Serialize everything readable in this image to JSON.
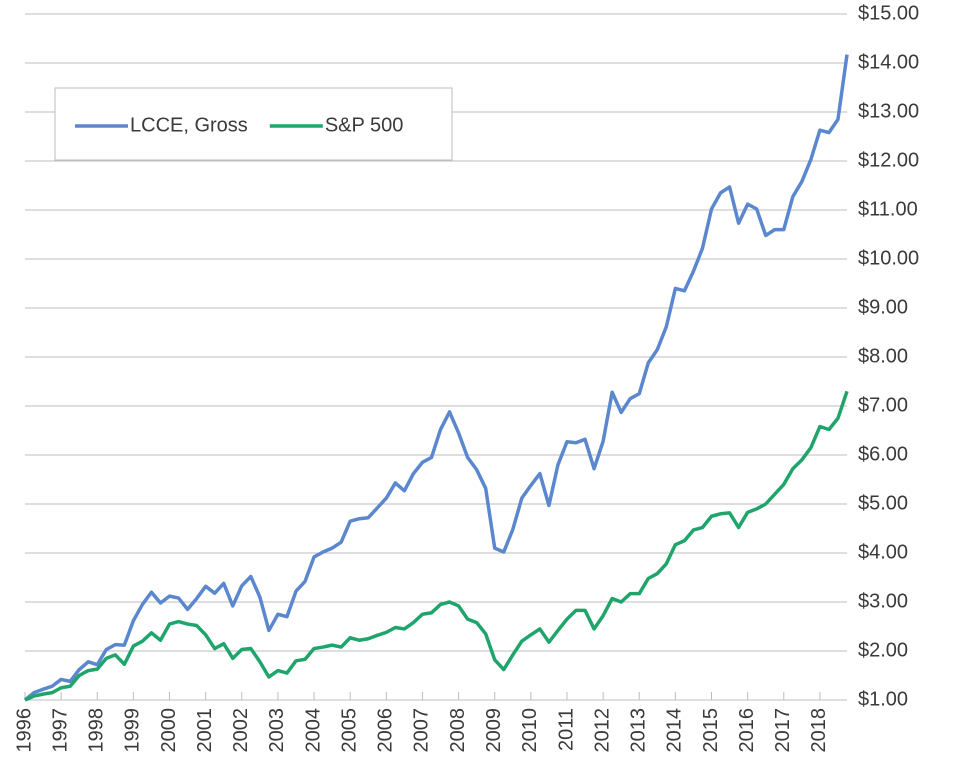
{
  "chart_data": {
    "type": "line",
    "x": [
      1996,
      1996.25,
      1996.5,
      1996.75,
      1997,
      1997.25,
      1997.5,
      1997.75,
      1998,
      1998.25,
      1998.5,
      1998.75,
      1999,
      1999.25,
      1999.5,
      1999.75,
      2000,
      2000.25,
      2000.5,
      2000.75,
      2001,
      2001.25,
      2001.5,
      2001.75,
      2002,
      2002.25,
      2002.5,
      2002.75,
      2003,
      2003.25,
      2003.5,
      2003.75,
      2004,
      2004.25,
      2004.5,
      2004.75,
      2005,
      2005.25,
      2005.5,
      2005.75,
      2006,
      2006.25,
      2006.5,
      2006.75,
      2007,
      2007.25,
      2007.5,
      2007.75,
      2008,
      2008.25,
      2008.5,
      2008.75,
      2009,
      2009.25,
      2009.5,
      2009.75,
      2010,
      2010.25,
      2010.5,
      2010.75,
      2011,
      2011.25,
      2011.5,
      2011.75,
      2012,
      2012.25,
      2012.5,
      2012.75,
      2013,
      2013.25,
      2013.5,
      2013.75,
      2014,
      2014.25,
      2014.5,
      2014.75,
      2015,
      2015.25,
      2015.5,
      2015.75,
      2016,
      2016.25,
      2016.5,
      2016.75,
      2017,
      2017.25,
      2017.5,
      2017.75,
      2018,
      2018.25,
      2018.5,
      2018.75
    ],
    "series": [
      {
        "name": "LCCE, Gross",
        "color": "#5b87cf",
        "values": [
          1.0,
          1.15,
          1.22,
          1.28,
          1.42,
          1.38,
          1.62,
          1.78,
          1.72,
          2.03,
          2.13,
          2.12,
          2.62,
          2.95,
          3.2,
          2.98,
          3.12,
          3.08,
          2.85,
          3.07,
          3.32,
          3.18,
          3.38,
          2.92,
          3.33,
          3.52,
          3.1,
          2.42,
          2.75,
          2.7,
          3.22,
          3.42,
          3.92,
          4.02,
          4.1,
          4.22,
          4.65,
          4.7,
          4.72,
          4.92,
          5.12,
          5.43,
          5.27,
          5.62,
          5.85,
          5.95,
          6.52,
          6.88,
          6.45,
          5.95,
          5.7,
          5.32,
          4.1,
          4.02,
          4.48,
          5.12,
          5.38,
          5.62,
          4.97,
          5.8,
          6.27,
          6.25,
          6.32,
          5.72,
          6.28,
          7.28,
          6.87,
          7.15,
          7.25,
          7.88,
          8.15,
          8.62,
          9.4,
          9.35,
          9.75,
          10.22,
          11.02,
          11.35,
          11.47,
          10.73,
          11.12,
          11.02,
          10.48,
          10.6,
          10.6,
          11.27,
          11.58,
          12.03,
          12.63,
          12.58,
          12.85,
          14.17
        ]
      },
      {
        "name": "S&P 500",
        "color": "#1fa56b",
        "values": [
          1.0,
          1.08,
          1.12,
          1.15,
          1.25,
          1.28,
          1.5,
          1.6,
          1.63,
          1.85,
          1.92,
          1.73,
          2.1,
          2.2,
          2.37,
          2.22,
          2.55,
          2.6,
          2.55,
          2.52,
          2.33,
          2.05,
          2.15,
          1.85,
          2.03,
          2.05,
          1.78,
          1.47,
          1.6,
          1.55,
          1.8,
          1.83,
          2.05,
          2.08,
          2.12,
          2.08,
          2.27,
          2.22,
          2.25,
          2.32,
          2.38,
          2.48,
          2.45,
          2.58,
          2.75,
          2.78,
          2.95,
          3.0,
          2.92,
          2.65,
          2.58,
          2.35,
          1.82,
          1.62,
          1.92,
          2.2,
          2.33,
          2.45,
          2.18,
          2.42,
          2.65,
          2.83,
          2.83,
          2.45,
          2.72,
          3.07,
          3.0,
          3.17,
          3.17,
          3.48,
          3.58,
          3.78,
          4.17,
          4.25,
          4.47,
          4.52,
          4.75,
          4.8,
          4.82,
          4.52,
          4.83,
          4.9,
          5.0,
          5.2,
          5.4,
          5.72,
          5.9,
          6.15,
          6.58,
          6.52,
          6.75,
          7.3
        ]
      }
    ],
    "xlim": [
      1996,
      2018.75
    ],
    "xticks": [
      1996,
      1997,
      1998,
      1999,
      2000,
      2001,
      2002,
      2003,
      2004,
      2005,
      2006,
      2007,
      2008,
      2009,
      2010,
      2011,
      2012,
      2013,
      2014,
      2015,
      2016,
      2017,
      2018
    ],
    "ylim": [
      1,
      15
    ],
    "yticks": [
      {
        "value": 1,
        "label": "$1.00"
      },
      {
        "value": 2,
        "label": "$2.00"
      },
      {
        "value": 3,
        "label": "$3.00"
      },
      {
        "value": 4,
        "label": "$4.00"
      },
      {
        "value": 5,
        "label": "$5.00"
      },
      {
        "value": 6,
        "label": "$6.00"
      },
      {
        "value": 7,
        "label": "$7.00"
      },
      {
        "value": 8,
        "label": "$8.00"
      },
      {
        "value": 9,
        "label": "$9.00"
      },
      {
        "value": 10,
        "label": "$10.00"
      },
      {
        "value": 11,
        "label": "$11.00"
      },
      {
        "value": 12,
        "label": "$12.00"
      },
      {
        "value": 13,
        "label": "$13.00"
      },
      {
        "value": 14,
        "label": "$14.00"
      },
      {
        "value": 15,
        "label": "$15.00"
      }
    ],
    "grid": true,
    "legend": "top-left"
  }
}
